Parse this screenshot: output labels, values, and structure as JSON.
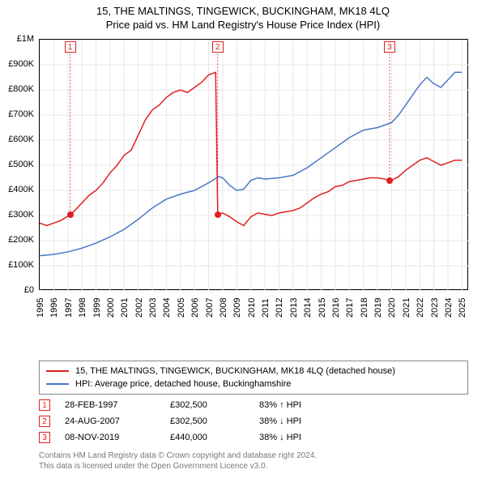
{
  "title_line1": "15, THE MALTINGS, TINGEWICK, BUCKINGHAM, MK18 4LQ",
  "title_line2": "Price paid vs. HM Land Registry's House Price Index (HPI)",
  "chart": {
    "type": "line",
    "background_color": "#ffffff",
    "border_color": "#000000",
    "xlim": [
      1995,
      2025.5
    ],
    "ylim": [
      0,
      1000000
    ],
    "yticks": [
      {
        "v": 0,
        "label": "£0"
      },
      {
        "v": 100000,
        "label": "£100K"
      },
      {
        "v": 200000,
        "label": "£200K"
      },
      {
        "v": 300000,
        "label": "£300K"
      },
      {
        "v": 400000,
        "label": "£400K"
      },
      {
        "v": 500000,
        "label": "£500K"
      },
      {
        "v": 600000,
        "label": "£600K"
      },
      {
        "v": 700000,
        "label": "£700K"
      },
      {
        "v": 800000,
        "label": "£800K"
      },
      {
        "v": 900000,
        "label": "£900K"
      },
      {
        "v": 1000000,
        "label": "£1M"
      }
    ],
    "xticks": [
      1995,
      1996,
      1997,
      1998,
      1999,
      2000,
      2001,
      2002,
      2003,
      2004,
      2005,
      2006,
      2007,
      2008,
      2009,
      2010,
      2011,
      2012,
      2013,
      2014,
      2015,
      2016,
      2017,
      2018,
      2019,
      2020,
      2021,
      2022,
      2023,
      2024,
      2025
    ],
    "grid_color": "#e7e7e7",
    "series": [
      {
        "name": "property",
        "color": "#e02020",
        "width": 1.5,
        "label": "15, THE MALTINGS, TINGEWICK, BUCKINGHAM, MK18 4LQ (detached house)",
        "points": [
          [
            1995,
            270000
          ],
          [
            1995.5,
            260000
          ],
          [
            1996,
            270000
          ],
          [
            1996.5,
            280000
          ],
          [
            1997.16,
            302500
          ],
          [
            1997.5,
            320000
          ],
          [
            1998,
            350000
          ],
          [
            1998.5,
            380000
          ],
          [
            1999,
            400000
          ],
          [
            1999.5,
            430000
          ],
          [
            2000,
            470000
          ],
          [
            2000.5,
            500000
          ],
          [
            2001,
            540000
          ],
          [
            2001.5,
            560000
          ],
          [
            2002,
            620000
          ],
          [
            2002.5,
            680000
          ],
          [
            2003,
            720000
          ],
          [
            2003.5,
            740000
          ],
          [
            2004,
            770000
          ],
          [
            2004.5,
            790000
          ],
          [
            2005,
            800000
          ],
          [
            2005.5,
            790000
          ],
          [
            2006,
            810000
          ],
          [
            2006.5,
            830000
          ],
          [
            2007,
            860000
          ],
          [
            2007.5,
            870000
          ],
          [
            2007.65,
            302500
          ],
          [
            2008,
            310000
          ],
          [
            2008.5,
            295000
          ],
          [
            2009,
            275000
          ],
          [
            2009.5,
            260000
          ],
          [
            2010,
            295000
          ],
          [
            2010.5,
            310000
          ],
          [
            2011,
            305000
          ],
          [
            2011.5,
            300000
          ],
          [
            2012,
            310000
          ],
          [
            2012.5,
            315000
          ],
          [
            2013,
            320000
          ],
          [
            2013.5,
            330000
          ],
          [
            2014,
            350000
          ],
          [
            2014.5,
            370000
          ],
          [
            2015,
            385000
          ],
          [
            2015.5,
            395000
          ],
          [
            2016,
            415000
          ],
          [
            2016.5,
            420000
          ],
          [
            2017,
            435000
          ],
          [
            2017.5,
            440000
          ],
          [
            2018,
            445000
          ],
          [
            2018.5,
            450000
          ],
          [
            2019,
            450000
          ],
          [
            2019.5,
            445000
          ],
          [
            2019.86,
            440000
          ],
          [
            2020,
            440000
          ],
          [
            2020.5,
            455000
          ],
          [
            2021,
            480000
          ],
          [
            2021.5,
            500000
          ],
          [
            2022,
            520000
          ],
          [
            2022.5,
            530000
          ],
          [
            2023,
            515000
          ],
          [
            2023.5,
            500000
          ],
          [
            2024,
            510000
          ],
          [
            2024.5,
            520000
          ],
          [
            2025,
            520000
          ]
        ]
      },
      {
        "name": "hpi",
        "color": "#4a76c7",
        "width": 1.5,
        "label": "HPI: Average price, detached house, Buckinghamshire",
        "points": [
          [
            1995,
            140000
          ],
          [
            1996,
            145000
          ],
          [
            1997,
            155000
          ],
          [
            1998,
            170000
          ],
          [
            1999,
            190000
          ],
          [
            2000,
            215000
          ],
          [
            2001,
            245000
          ],
          [
            2002,
            285000
          ],
          [
            2003,
            330000
          ],
          [
            2004,
            365000
          ],
          [
            2005,
            385000
          ],
          [
            2006,
            400000
          ],
          [
            2007,
            430000
          ],
          [
            2007.7,
            455000
          ],
          [
            2008,
            450000
          ],
          [
            2008.5,
            420000
          ],
          [
            2009,
            400000
          ],
          [
            2009.5,
            405000
          ],
          [
            2010,
            440000
          ],
          [
            2010.5,
            450000
          ],
          [
            2011,
            445000
          ],
          [
            2012,
            450000
          ],
          [
            2013,
            460000
          ],
          [
            2014,
            490000
          ],
          [
            2015,
            530000
          ],
          [
            2016,
            570000
          ],
          [
            2017,
            610000
          ],
          [
            2018,
            640000
          ],
          [
            2019,
            650000
          ],
          [
            2020,
            670000
          ],
          [
            2020.5,
            700000
          ],
          [
            2021,
            740000
          ],
          [
            2021.5,
            780000
          ],
          [
            2022,
            820000
          ],
          [
            2022.5,
            850000
          ],
          [
            2023,
            825000
          ],
          [
            2023.5,
            810000
          ],
          [
            2024,
            840000
          ],
          [
            2024.5,
            870000
          ],
          [
            2025,
            870000
          ]
        ]
      }
    ],
    "markers": [
      {
        "n": "1",
        "x": 1997.16,
        "y": 302500,
        "box_y": 970000
      },
      {
        "n": "2",
        "x": 2007.65,
        "y": 302500,
        "box_y": 970000
      },
      {
        "n": "3",
        "x": 2019.86,
        "y": 440000,
        "box_y": 970000
      }
    ]
  },
  "events": [
    {
      "n": "1",
      "date": "28-FEB-1997",
      "price": "£302,500",
      "pct": "83% ↑ HPI"
    },
    {
      "n": "2",
      "date": "24-AUG-2007",
      "price": "£302,500",
      "pct": "38% ↓ HPI"
    },
    {
      "n": "3",
      "date": "08-NOV-2019",
      "price": "£440,000",
      "pct": "38% ↓ HPI"
    }
  ],
  "footnote_line1": "Contains HM Land Registry data © Crown copyright and database right 2024.",
  "footnote_line2": "This data is licensed under the Open Government Licence v3.0."
}
